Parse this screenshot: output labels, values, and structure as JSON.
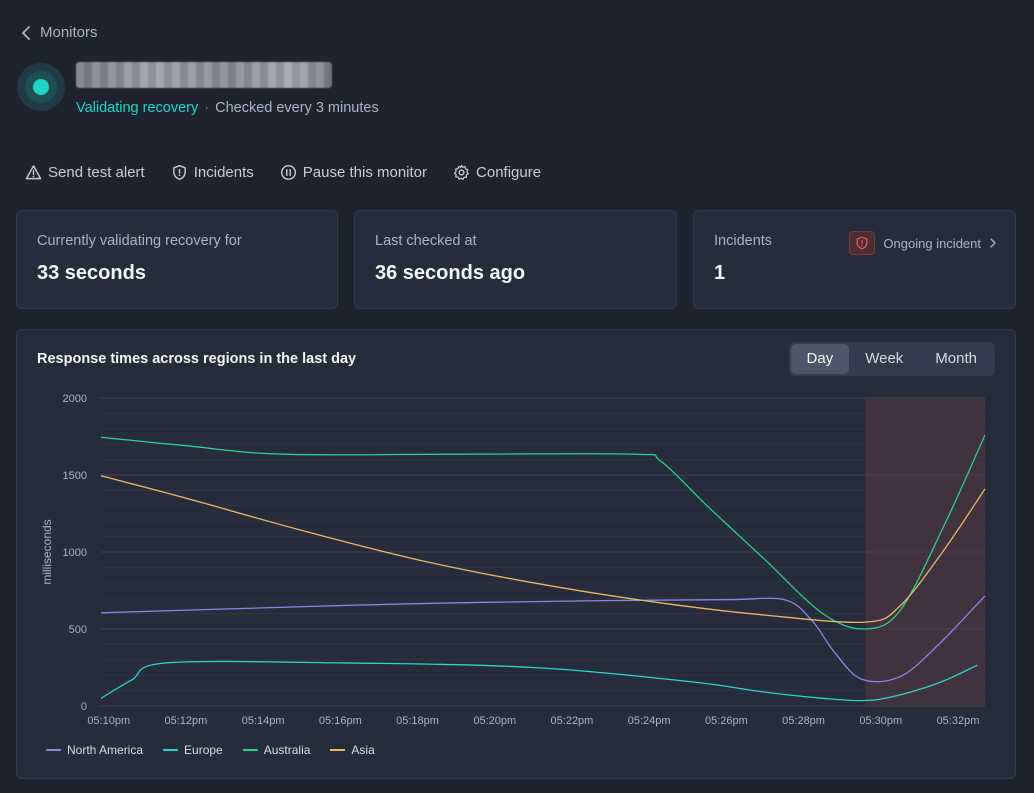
{
  "nav": {
    "back_label": "Monitors"
  },
  "monitor": {
    "status": "Validating recovery",
    "separator": "·",
    "interval": "Checked every 3 minutes"
  },
  "toolbar": {
    "send_test_alert": "Send test alert",
    "incidents": "Incidents",
    "pause": "Pause this monitor",
    "configure": "Configure"
  },
  "cards": {
    "recovery": {
      "label": "Currently validating recovery for",
      "value": "33 seconds"
    },
    "last_checked": {
      "label": "Last checked at",
      "value": "36 seconds ago"
    },
    "incidents": {
      "label": "Incidents",
      "value": "1",
      "ongoing": "Ongoing incident"
    }
  },
  "chart": {
    "title": "Response times across regions in the last day",
    "ranges": [
      "Day",
      "Week",
      "Month"
    ],
    "active_range": "Day"
  },
  "colors": {
    "accent": "#1ed6c5",
    "incident": "#e05a5a",
    "north_america": "#8b86e6",
    "europe": "#2fd2c9",
    "australia": "#2fcf8c",
    "asia": "#e8b86a"
  },
  "chart_data": {
    "type": "line",
    "ylabel": "milliseconds",
    "ylim": [
      0,
      2000
    ],
    "yticks": [
      0,
      500,
      1000,
      1500,
      2000
    ],
    "xlim_minutes": [
      -0.2,
      22.7
    ],
    "xticks": [
      "05:10pm",
      "05:12pm",
      "05:14pm",
      "05:16pm",
      "05:18pm",
      "05:20pm",
      "05:22pm",
      "05:24pm",
      "05:26pm",
      "05:28pm",
      "05:30pm",
      "05:32pm"
    ],
    "incident_start_minute": 19.6,
    "series": [
      {
        "name": "North America",
        "color": "#8b86e6",
        "points": [
          [
            -0.2,
            605
          ],
          [
            3,
            630
          ],
          [
            8,
            665
          ],
          [
            13,
            685
          ],
          [
            16,
            690
          ],
          [
            17.5,
            690
          ],
          [
            18.2,
            560
          ],
          [
            18.8,
            350
          ],
          [
            19.5,
            175
          ],
          [
            20.5,
            190
          ],
          [
            21.5,
            400
          ],
          [
            22.7,
            715
          ]
        ]
      },
      {
        "name": "Europe",
        "color": "#2fd2c9",
        "points": [
          [
            -0.2,
            50
          ],
          [
            0.6,
            170
          ],
          [
            1.5,
            280
          ],
          [
            6,
            280
          ],
          [
            11,
            250
          ],
          [
            15,
            160
          ],
          [
            17,
            90
          ],
          [
            18.5,
            50
          ],
          [
            19.5,
            35
          ],
          [
            20.3,
            60
          ],
          [
            21.5,
            150
          ],
          [
            22.5,
            265
          ]
        ]
      },
      {
        "name": "Australia",
        "color": "#2fcf8c",
        "points": [
          [
            -0.2,
            1745
          ],
          [
            2,
            1690
          ],
          [
            4.5,
            1635
          ],
          [
            9,
            1635
          ],
          [
            13.6,
            1635
          ],
          [
            14.3,
            1590
          ],
          [
            15.5,
            1300
          ],
          [
            17,
            950
          ],
          [
            18.5,
            600
          ],
          [
            19.6,
            500
          ],
          [
            20.5,
            620
          ],
          [
            21.6,
            1150
          ],
          [
            22.7,
            1760
          ]
        ]
      },
      {
        "name": "Asia",
        "color": "#e8b86a",
        "points": [
          [
            -0.2,
            1495
          ],
          [
            2,
            1350
          ],
          [
            5,
            1140
          ],
          [
            8,
            950
          ],
          [
            11,
            800
          ],
          [
            14,
            680
          ],
          [
            17,
            590
          ],
          [
            19.6,
            545
          ],
          [
            20.5,
            650
          ],
          [
            21.6,
            1000
          ],
          [
            22.7,
            1410
          ]
        ]
      }
    ],
    "legend_position": "bottom-left"
  }
}
